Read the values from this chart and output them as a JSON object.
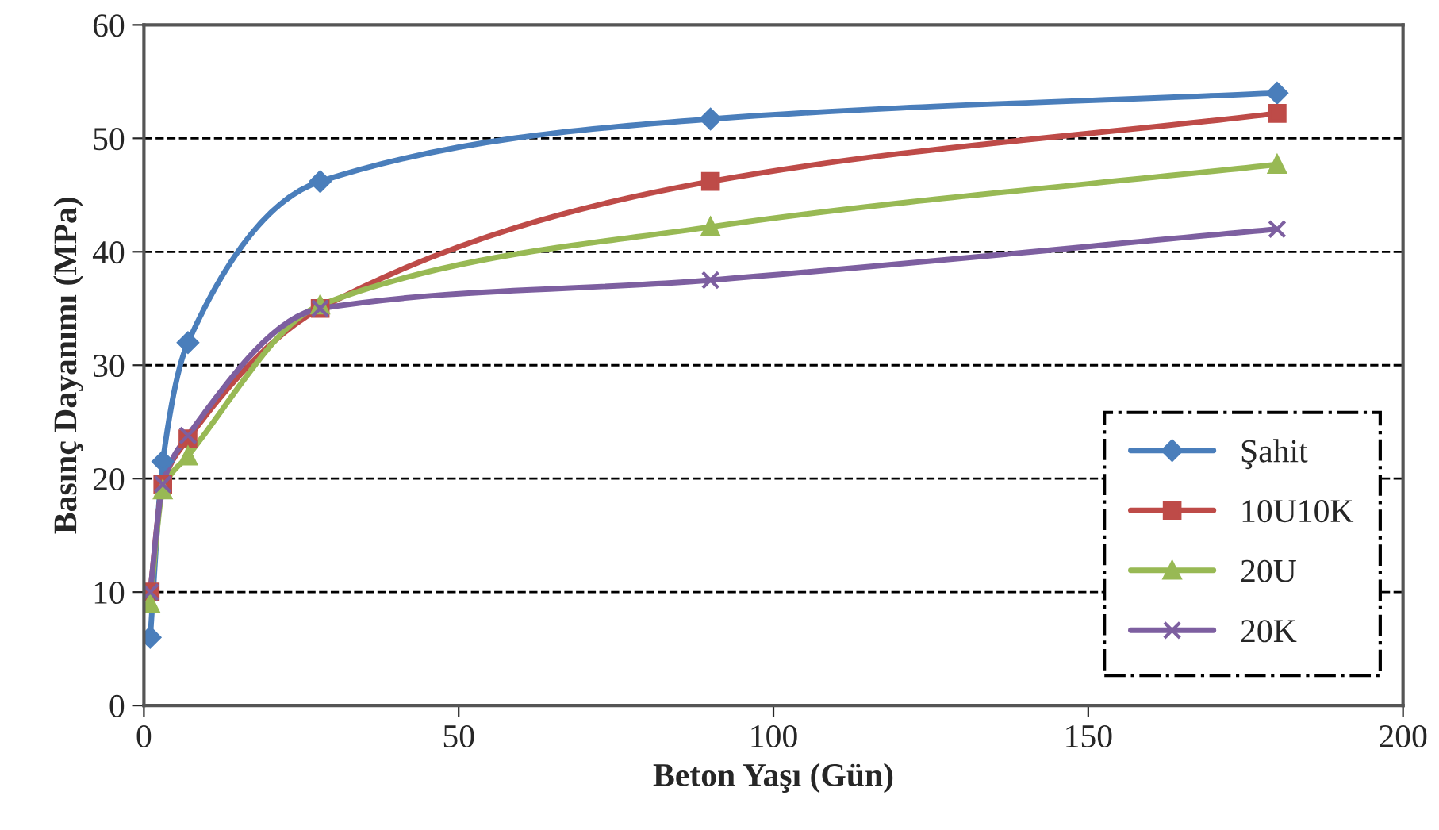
{
  "chart_data": {
    "type": "line",
    "xlabel": "Beton Yaşı (Gün)",
    "ylabel": "Basınç Dayanımı (MPa)",
    "x": [
      1,
      3,
      7,
      28,
      90,
      180
    ],
    "series": [
      {
        "name": "Şahit",
        "color": "#4a7ebb",
        "marker": "diamond",
        "values": [
          6,
          21.5,
          32,
          46.2,
          51.7,
          54
        ]
      },
      {
        "name": "10U10K",
        "color": "#be4b48",
        "marker": "square",
        "values": [
          10,
          19.5,
          23.5,
          35,
          46.2,
          52.2
        ]
      },
      {
        "name": "20U",
        "color": "#98b954",
        "marker": "triangle",
        "values": [
          9,
          19,
          22,
          35.3,
          42.2,
          47.7
        ]
      },
      {
        "name": "20K",
        "color": "#7d5fa0",
        "marker": "cross",
        "values": [
          10,
          19.5,
          23.8,
          35,
          37.5,
          42
        ]
      }
    ],
    "xlim": [
      0,
      200
    ],
    "xticks": [
      0,
      50,
      100,
      150,
      200
    ],
    "ylim": [
      0,
      60
    ],
    "yticks": [
      0,
      10,
      20,
      30,
      40,
      50,
      60
    ],
    "grid": "y",
    "legend": "bottom right",
    "line_style": "solid"
  }
}
